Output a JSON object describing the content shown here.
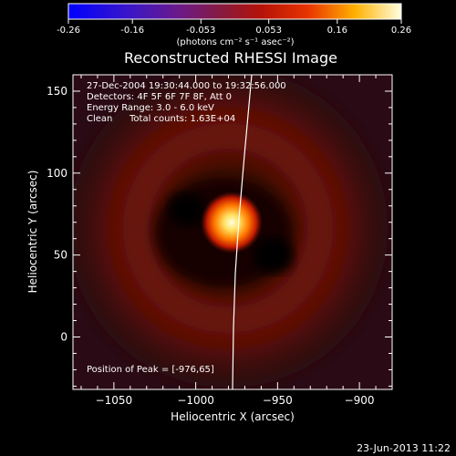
{
  "colorbar": {
    "ticks": [
      "-0.26",
      "-0.16",
      "-0.053",
      "0.053",
      "0.16",
      "0.26"
    ],
    "unit_label": "(photons cm⁻² s⁻¹ asec⁻²)",
    "range": [
      -0.26,
      0.26
    ]
  },
  "chart_data": {
    "type": "heatmap",
    "title": "Reconstructed RHESSI Image",
    "xlabel": "Heliocentric X (arcsec)",
    "ylabel": "Heliocentric Y (arcsec)",
    "xlim": [
      -1075,
      -880
    ],
    "ylim": [
      -32,
      160
    ],
    "xticks": [
      "−1050",
      "−1000",
      "−950",
      "−900"
    ],
    "xtick_values": [
      -1050,
      -1000,
      -950,
      -900
    ],
    "yticks": [
      "0",
      "50",
      "100",
      "150"
    ],
    "ytick_values": [
      0,
      50,
      100,
      150
    ],
    "peak": {
      "x": -976,
      "y": 65
    },
    "annotations": [
      "27-Dec-2004 19:30:44.000 to 19:32:56.000",
      "Detectors: 4F 5F 6F 7F 8F, Att 0",
      "Energy Range: 3.0 - 6.0 keV",
      "Clean",
      "Total counts: 1.63E+04",
      "Position of Peak = [-976,65]"
    ]
  },
  "timestamp": "23-Jun-2013 11:22"
}
